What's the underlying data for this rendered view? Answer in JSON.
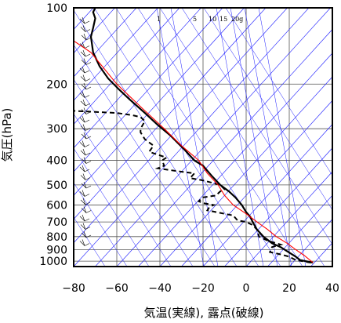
{
  "chart_data": {
    "type": "line",
    "title": "",
    "xlabel": "気温(実線), 露点(破線)",
    "ylabel": "気圧(hPa)",
    "x_range": [
      -80,
      40
    ],
    "y_range": [
      100,
      1050
    ],
    "y_scale": "log",
    "y_reversed": true,
    "x_ticks": [
      -80,
      -60,
      -40,
      -20,
      0,
      20,
      40
    ],
    "x_tick_labels": [
      "−80",
      "−60",
      "−40",
      "−20",
      "0",
      "20",
      "40"
    ],
    "y_ticks": [
      100,
      200,
      300,
      400,
      500,
      600,
      700,
      800,
      900,
      1000
    ],
    "y_tick_labels": [
      "100",
      "200",
      "300",
      "400",
      "500",
      "600",
      "700",
      "800",
      "900",
      "1000"
    ],
    "grid": true,
    "mixing_ratio_labels": [
      "1",
      "5",
      "10",
      "15",
      "20g"
    ],
    "series": [
      {
        "style": "solid-thick",
        "color": "#000000",
        "points": [
          [
            31,
            1013
          ],
          [
            25,
            990
          ],
          [
            23,
            960
          ],
          [
            20,
            925
          ],
          [
            16,
            880
          ],
          [
            12,
            850
          ],
          [
            8,
            800
          ],
          [
            5,
            750
          ],
          [
            3,
            700
          ],
          [
            2,
            670
          ],
          [
            0,
            640
          ],
          [
            -2,
            600
          ],
          [
            -5,
            560
          ],
          [
            -8,
            530
          ],
          [
            -12,
            500
          ],
          [
            -16,
            460
          ],
          [
            -20,
            420
          ],
          [
            -24,
            400
          ],
          [
            -29,
            360
          ],
          [
            -35,
            320
          ],
          [
            -41,
            290
          ],
          [
            -47,
            260
          ],
          [
            -54,
            230
          ],
          [
            -59,
            210
          ],
          [
            -64,
            190
          ],
          [
            -68,
            170
          ],
          [
            -71,
            150
          ],
          [
            -72,
            130
          ],
          [
            -71,
            120
          ],
          [
            -70,
            110
          ],
          [
            -71,
            104
          ],
          [
            -70,
            100
          ]
        ]
      },
      {
        "style": "dashed",
        "color": "#000000",
        "points": [
          [
            30,
            1013
          ],
          [
            23,
            990
          ],
          [
            20,
            960
          ],
          [
            16,
            940
          ],
          [
            11,
            920
          ],
          [
            12,
            880
          ],
          [
            16,
            860
          ],
          [
            10,
            830
          ],
          [
            6,
            800
          ],
          [
            5,
            750
          ],
          [
            3,
            720
          ],
          [
            0,
            700
          ],
          [
            -4,
            690
          ],
          [
            -6,
            660
          ],
          [
            -10,
            650
          ],
          [
            -14,
            640
          ],
          [
            -18,
            630
          ],
          [
            -17,
            610
          ],
          [
            -15,
            600
          ],
          [
            -20,
            590
          ],
          [
            -22,
            580
          ],
          [
            -20,
            560
          ],
          [
            -14,
            550
          ],
          [
            -12,
            530
          ],
          [
            -10,
            520
          ],
          [
            -12,
            500
          ],
          [
            -16,
            490
          ],
          [
            -20,
            480
          ],
          [
            -26,
            470
          ],
          [
            -24,
            450
          ],
          [
            -33,
            440
          ],
          [
            -41,
            430
          ],
          [
            -38,
            420
          ],
          [
            -39,
            400
          ],
          [
            -37,
            390
          ],
          [
            -45,
            370
          ],
          [
            -43,
            350
          ],
          [
            -47,
            330
          ],
          [
            -49,
            310
          ],
          [
            -49,
            300
          ],
          [
            -47,
            280
          ],
          [
            -49,
            270
          ],
          [
            -53,
            265
          ],
          [
            -60,
            260
          ],
          [
            -80,
            255
          ]
        ]
      },
      {
        "style": "solid-thin",
        "color": "#ff0000",
        "points": [
          [
            31,
            1013
          ],
          [
            27,
            950
          ],
          [
            23,
            900
          ],
          [
            19,
            850
          ],
          [
            14,
            800
          ],
          [
            10,
            750
          ],
          [
            5,
            700
          ],
          [
            0,
            650
          ],
          [
            -6,
            600
          ],
          [
            -10,
            550
          ],
          [
            -13,
            500
          ],
          [
            -18,
            450
          ],
          [
            -22,
            400
          ],
          [
            -30,
            350
          ],
          [
            -38,
            300
          ],
          [
            -48,
            250
          ],
          [
            -60,
            200
          ],
          [
            -72,
            150
          ],
          [
            -80,
            135
          ]
        ]
      }
    ],
    "wind_barbs_count": 28
  }
}
